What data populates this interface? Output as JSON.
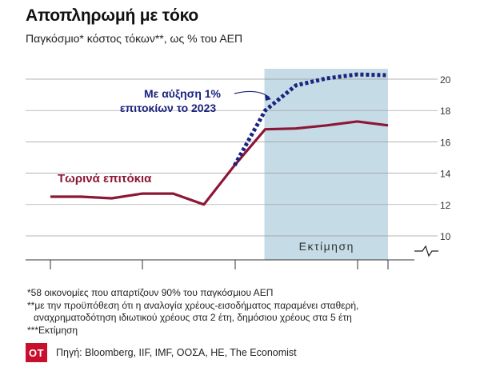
{
  "header": {
    "title": "Αποπληρωμή με τόκο",
    "subtitle": "Παγκόσμιο* κόστος τόκων**, ως % του ΑΕΠ"
  },
  "chart_data": {
    "type": "line",
    "title": "Αποπληρωμή με τόκο",
    "subtitle": "Παγκόσμιο* κόστος τόκων**, ως % του ΑΕΠ",
    "y_ticks": [
      10,
      12,
      14,
      16,
      18,
      20
    ],
    "ylim": [
      9,
      21
    ],
    "y_axis_position": "right",
    "grid": true,
    "x_ticks_labeled": false,
    "shaded_region": {
      "label": "Εκτίμηση",
      "color": "#c5dbe6",
      "x_start": 7.0,
      "x_end": 11.0
    },
    "series": [
      {
        "name": "Τωρινά επιτόκια",
        "style": "solid",
        "color": "#8c1736",
        "x": [
          0,
          1,
          2,
          3,
          4,
          5,
          6,
          7,
          8,
          9,
          10,
          11
        ],
        "y": [
          12.5,
          12.5,
          12.4,
          12.7,
          12.7,
          12.0,
          14.5,
          16.8,
          16.85,
          17.05,
          17.3,
          17.05
        ]
      },
      {
        "name": "Με αύξηση 1% επιτοκίων το 2023",
        "style": "dotted",
        "color": "#1a237e",
        "x": [
          6,
          7,
          8,
          9,
          10,
          11
        ],
        "y": [
          14.5,
          18.0,
          19.6,
          20.05,
          20.3,
          20.25
        ]
      }
    ],
    "annotations": [
      {
        "text_line1": "Με αύξηση 1%",
        "text_line2": "επιτοκίων το 2023",
        "color": "#1a237e"
      },
      {
        "text": "Τωρινά επιτόκια",
        "color": "#8c1736"
      }
    ]
  },
  "notes": [
    "*58 οικονομίες που απαρτίζουν 90% του παγκόσμιου ΑΕΠ",
    "**με την προϋπόθεση ότι η αναλογία χρέους-εισοδήματος παραμένει σταθερή,",
    "  αναχρηματοδότηση ιδιωτικού χρέους στα 2 έτη, δημόσιου χρέους στα 5 έτη",
    "***Εκτίμηση"
  ],
  "footer": {
    "logo_text": "OT",
    "logo_color": "#c8102e",
    "source": "Πηγή: Bloomberg, IIF, IMF, ΟΟΣΑ, HE, The Economist"
  }
}
